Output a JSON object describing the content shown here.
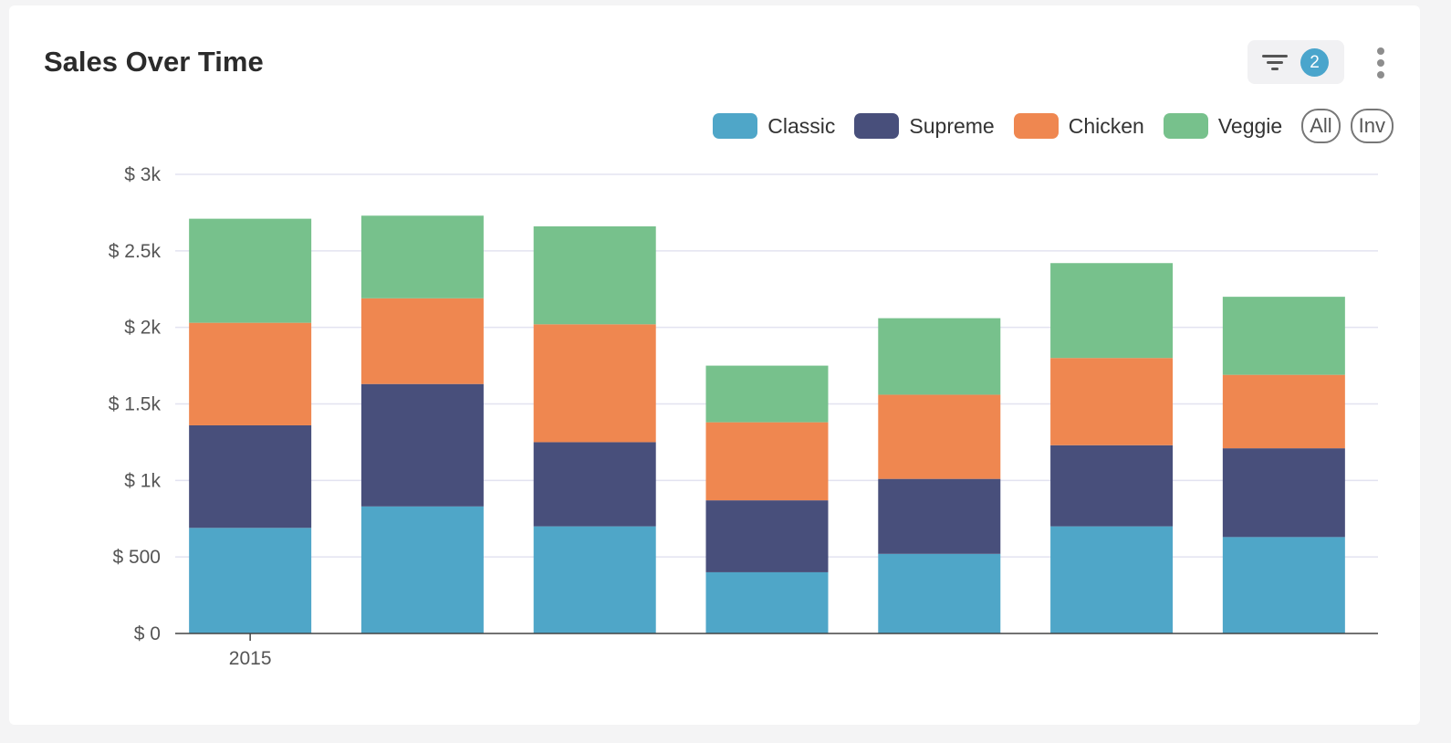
{
  "header": {
    "title": "Sales Over Time",
    "filter_count": "2"
  },
  "icons": {
    "filter": "filter-icon",
    "more": "more-vertical-icon"
  },
  "legend": {
    "items": [
      {
        "label": "Classic",
        "color": "#4fa6c8"
      },
      {
        "label": "Supreme",
        "color": "#484f7b"
      },
      {
        "label": "Chicken",
        "color": "#ef8750"
      },
      {
        "label": "Veggie",
        "color": "#77c18c"
      }
    ],
    "all_label": "All",
    "inv_label": "Inv"
  },
  "chart_data": {
    "type": "bar",
    "stacked": true,
    "title": "Sales Over Time",
    "categories": [
      "2015",
      "",
      "",
      "",
      "",
      "",
      ""
    ],
    "series": [
      {
        "name": "Classic",
        "values": [
          690,
          830,
          700,
          400,
          520,
          700,
          630
        ]
      },
      {
        "name": "Supreme",
        "values": [
          670,
          800,
          550,
          470,
          490,
          530,
          580
        ]
      },
      {
        "name": "Chicken",
        "values": [
          670,
          560,
          770,
          510,
          550,
          570,
          480
        ]
      },
      {
        "name": "Veggie",
        "values": [
          680,
          540,
          640,
          370,
          500,
          620,
          510
        ]
      }
    ],
    "ylim": [
      0,
      3000
    ],
    "yticks": [
      "$ 0",
      "$ 500",
      "$ 1k",
      "$ 1.5k",
      "$ 2k",
      "$ 2.5k",
      "$ 3k"
    ],
    "grid": true,
    "legend_position": "top-right"
  }
}
